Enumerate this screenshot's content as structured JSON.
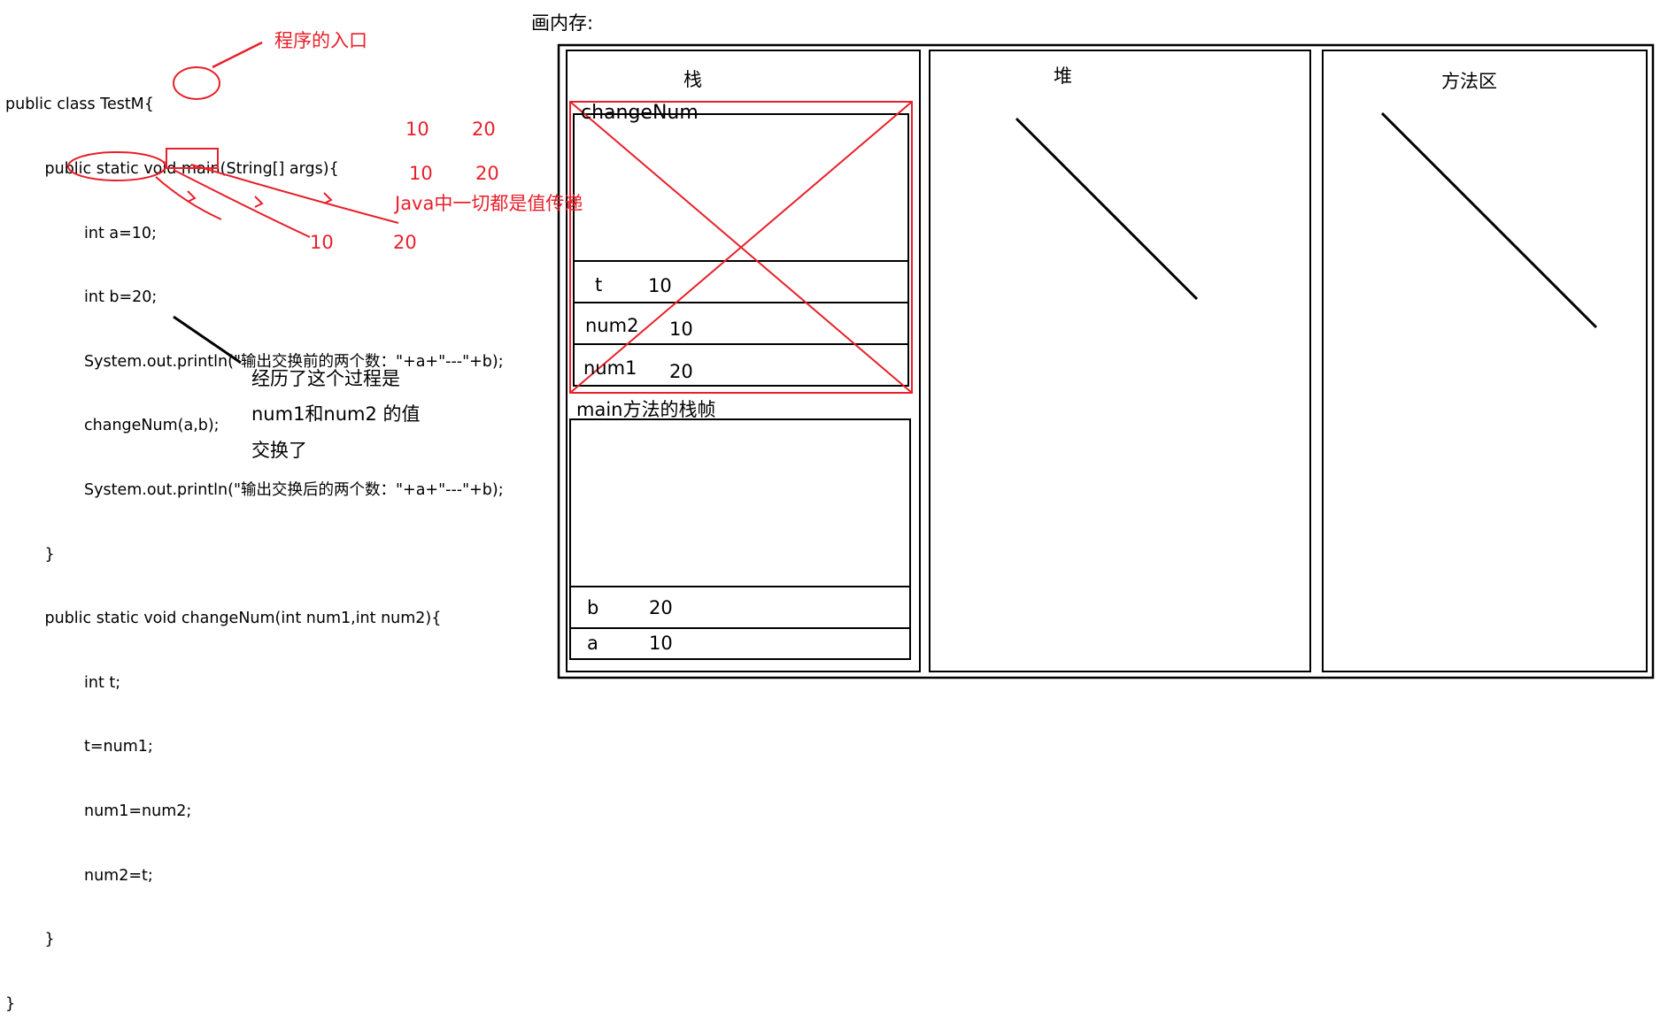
{
  "code_lines": [
    "public class TestM{",
    "        public static void main(String[] args){",
    "                int a=10;",
    "                int b=20;",
    "                System.out.println(\"输出交换前的两个数：\"+a+\"---\"+b);",
    "                changeNum(a,b);",
    "                System.out.println(\"输出交换后的两个数：\"+a+\"---\"+b);",
    "        }",
    "        public static void changeNum(int num1,int num2){",
    "                int t;",
    "                t=num1;",
    "                num1=num2;",
    "                num2=t;",
    "        }",
    "}"
  ],
  "annotations": {
    "entry_label": "程序的入口",
    "value_pass_label": "Java中一切都是值传递",
    "val_10_a": "10",
    "val_20_a": "20",
    "val_10_b": "10",
    "val_20_b": "20",
    "val_10_c": "10",
    "val_20_c": "20",
    "swap_note_line1": "经历了这个过程是",
    "swap_note_line2": "num1和num2 的值",
    "swap_note_line3": "交换了"
  },
  "memory": {
    "title": "画内存:",
    "stack_label": "栈",
    "heap_label": "堆",
    "method_area_label": "方法区",
    "change_frame_label": "changeNum",
    "change_rows": [
      {
        "name": "t",
        "value": "10"
      },
      {
        "name": "num2",
        "value": "10"
      },
      {
        "name": "num1",
        "value": "20"
      }
    ],
    "main_frame_label": "main方法的栈帧",
    "main_rows": [
      {
        "name": "b",
        "value": "20"
      },
      {
        "name": "a",
        "value": "10"
      }
    ]
  },
  "colors": {
    "annotation_red": "#e8202a",
    "line_black": "#000000"
  }
}
